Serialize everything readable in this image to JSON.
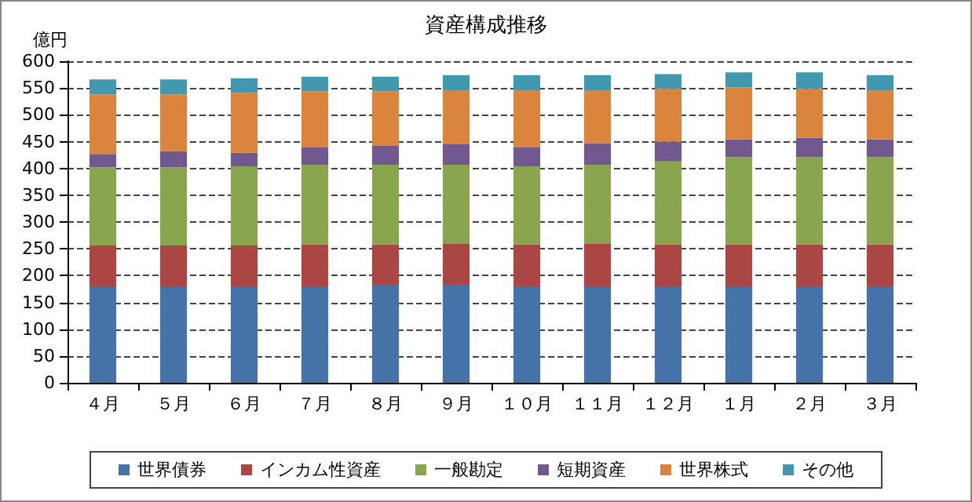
{
  "chart_data": {
    "type": "bar",
    "stacked": true,
    "title": "資産構成推移",
    "ylabel": "億円",
    "categories": [
      "４月",
      "５月",
      "６月",
      "７月",
      "８月",
      "９月",
      "１０月",
      "１１月",
      "１２月",
      "１月",
      "２月",
      "３月"
    ],
    "series": [
      {
        "name": "世界債券",
        "color": "#4572a7",
        "values": [
          180,
          180,
          180,
          180,
          183,
          183,
          180,
          180,
          180,
          180,
          180,
          180
        ]
      },
      {
        "name": "インカム性資産",
        "color": "#aa4643",
        "values": [
          76,
          76,
          76,
          78,
          75,
          77,
          78,
          80,
          78,
          78,
          78,
          78
        ]
      },
      {
        "name": "一般勘定",
        "color": "#89a54e",
        "values": [
          146,
          146,
          148,
          149,
          149,
          147,
          146,
          147,
          155,
          163,
          163,
          163
        ]
      },
      {
        "name": "短期資産",
        "color": "#71588f",
        "values": [
          25,
          30,
          25,
          32,
          35,
          38,
          35,
          40,
          37,
          33,
          36,
          33
        ]
      },
      {
        "name": "世界株式",
        "color": "#db843d",
        "values": [
          111,
          106,
          112,
          105,
          102,
          101,
          107,
          99,
          99,
          97,
          92,
          92
        ]
      },
      {
        "name": "その他",
        "color": "#4198af",
        "values": [
          28,
          28,
          27,
          27,
          27,
          28,
          28,
          28,
          27,
          28,
          30,
          28
        ]
      }
    ],
    "ylim": [
      0,
      600
    ],
    "yticks": [
      0,
      50,
      100,
      150,
      200,
      250,
      300,
      350,
      400,
      450,
      500,
      550,
      600
    ],
    "grid": "y",
    "legend": "bottom"
  }
}
